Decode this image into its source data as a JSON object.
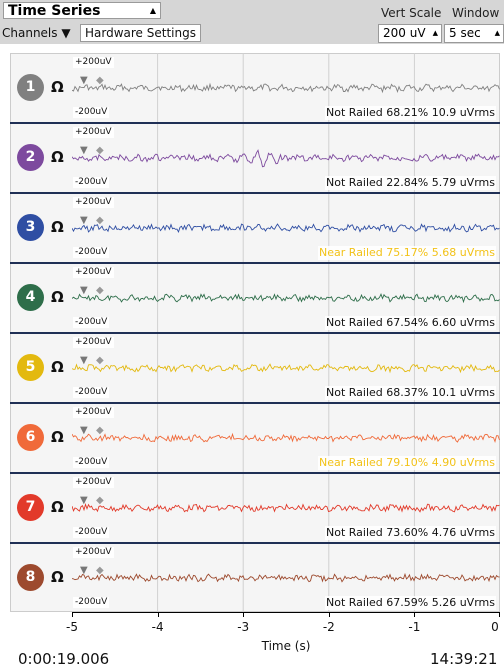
{
  "widget": {
    "title": "Time Series",
    "vert_scale_label": "Vert Scale",
    "window_label": "Window",
    "channels_label": "Channels ▼",
    "hardware_button": "Hardware Settings",
    "vert_scale_value": "200 uV",
    "window_value": "5 sec"
  },
  "channels": [
    {
      "num": "1",
      "color": "#808080",
      "trace": "#808080",
      "top_label": "+200uV",
      "bottom_label": "-200uV",
      "status": "Not Railed 68.21% 10.9 uVrms",
      "warn": false
    },
    {
      "num": "2",
      "color": "#7d4a9e",
      "trace": "#7d4a9e",
      "top_label": "+200uV",
      "bottom_label": "-200uV",
      "status": "Not Railed 22.84% 5.79 uVrms",
      "warn": false
    },
    {
      "num": "3",
      "color": "#2f4ea3",
      "trace": "#2f4ea3",
      "top_label": "+200uV",
      "bottom_label": "-200uV",
      "status": "Near Railed 75.17% 5.68 uVrms",
      "warn": true
    },
    {
      "num": "4",
      "color": "#2e6e4a",
      "trace": "#2e6e4a",
      "top_label": "+200uV",
      "bottom_label": "-200uV",
      "status": "Not Railed 67.54% 6.60 uVrms",
      "warn": false
    },
    {
      "num": "5",
      "color": "#e3b90f",
      "trace": "#e3b90f",
      "top_label": "+200uV",
      "bottom_label": "-200uV",
      "status": "Not Railed 68.37% 10.1 uVrms",
      "warn": false
    },
    {
      "num": "6",
      "color": "#f06a3a",
      "trace": "#f06a3a",
      "top_label": "+200uV",
      "bottom_label": "-200uV",
      "status": "Near Railed 79.10% 4.90 uVrms",
      "warn": true
    },
    {
      "num": "7",
      "color": "#e23a2a",
      "trace": "#e23a2a",
      "top_label": "+200uV",
      "bottom_label": "-200uV",
      "status": "Not Railed 73.60% 4.76 uVrms",
      "warn": false
    },
    {
      "num": "8",
      "color": "#9d4a2e",
      "trace": "#9d4a2e",
      "top_label": "+200uV",
      "bottom_label": "-200uV",
      "status": "Not Railed 67.59% 5.26 uVrms",
      "warn": false
    }
  ],
  "x_axis": {
    "label": "Time (s)",
    "ticks": [
      "-5",
      "-4",
      "-3",
      "-2",
      "-1",
      "0"
    ]
  },
  "footer": {
    "elapsed": "0:00:19.006",
    "clock": "14:39:21"
  },
  "colors": {
    "separator": "#1f2f55",
    "warning": "#f2c218"
  }
}
